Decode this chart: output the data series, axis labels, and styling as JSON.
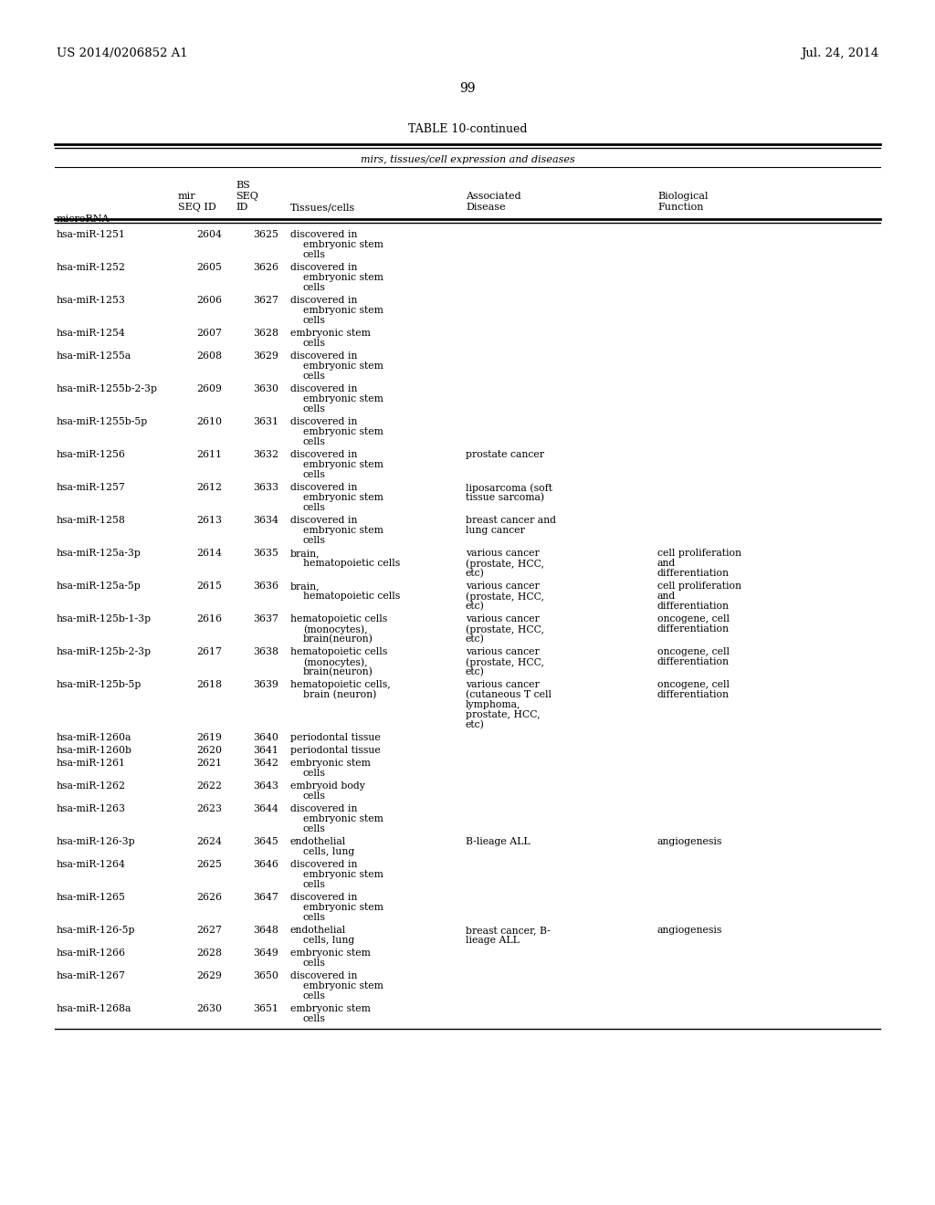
{
  "patent_left": "US 2014/0206852 A1",
  "patent_right": "Jul. 24, 2014",
  "page_number": "99",
  "table_title": "TABLE 10-continued",
  "table_subtitle": "mirs, tissues/cell expression and diseases",
  "rows": [
    {
      "mirna": "hsa-miR-1251",
      "mir_id": "2604",
      "bs_id": "3625",
      "tissues": [
        "discovered in",
        "embryonic stem",
        "cells"
      ],
      "disease": [],
      "bio_func": []
    },
    {
      "mirna": "hsa-miR-1252",
      "mir_id": "2605",
      "bs_id": "3626",
      "tissues": [
        "discovered in",
        "embryonic stem",
        "cells"
      ],
      "disease": [],
      "bio_func": []
    },
    {
      "mirna": "hsa-miR-1253",
      "mir_id": "2606",
      "bs_id": "3627",
      "tissues": [
        "discovered in",
        "embryonic stem",
        "cells"
      ],
      "disease": [],
      "bio_func": []
    },
    {
      "mirna": "hsa-miR-1254",
      "mir_id": "2607",
      "bs_id": "3628",
      "tissues": [
        "embryonic stem",
        "cells"
      ],
      "disease": [],
      "bio_func": []
    },
    {
      "mirna": "hsa-miR-1255a",
      "mir_id": "2608",
      "bs_id": "3629",
      "tissues": [
        "discovered in",
        "embryonic stem",
        "cells"
      ],
      "disease": [],
      "bio_func": []
    },
    {
      "mirna": "hsa-miR-1255b-2-3p",
      "mir_id": "2609",
      "bs_id": "3630",
      "tissues": [
        "discovered in",
        "embryonic stem",
        "cells"
      ],
      "disease": [],
      "bio_func": []
    },
    {
      "mirna": "hsa-miR-1255b-5p",
      "mir_id": "2610",
      "bs_id": "3631",
      "tissues": [
        "discovered in",
        "embryonic stem",
        "cells"
      ],
      "disease": [],
      "bio_func": []
    },
    {
      "mirna": "hsa-miR-1256",
      "mir_id": "2611",
      "bs_id": "3632",
      "tissues": [
        "discovered in",
        "embryonic stem",
        "cells"
      ],
      "disease": [
        "prostate cancer"
      ],
      "bio_func": []
    },
    {
      "mirna": "hsa-miR-1257",
      "mir_id": "2612",
      "bs_id": "3633",
      "tissues": [
        "discovered in",
        "embryonic stem",
        "cells"
      ],
      "disease": [
        "liposarcoma (soft",
        "tissue sarcoma)"
      ],
      "bio_func": []
    },
    {
      "mirna": "hsa-miR-1258",
      "mir_id": "2613",
      "bs_id": "3634",
      "tissues": [
        "discovered in",
        "embryonic stem",
        "cells"
      ],
      "disease": [
        "breast cancer and",
        "lung cancer"
      ],
      "bio_func": []
    },
    {
      "mirna": "hsa-miR-125a-3p",
      "mir_id": "2614",
      "bs_id": "3635",
      "tissues": [
        "brain,",
        "hematopoietic cells"
      ],
      "disease": [
        "various cancer",
        "(prostate, HCC,",
        "etc)"
      ],
      "bio_func": [
        "cell proliferation",
        "and",
        "differentiation"
      ]
    },
    {
      "mirna": "hsa-miR-125a-5p",
      "mir_id": "2615",
      "bs_id": "3636",
      "tissues": [
        "brain,",
        "hematopoietic cells"
      ],
      "disease": [
        "various cancer",
        "(prostate, HCC,",
        "etc)"
      ],
      "bio_func": [
        "cell proliferation",
        "and",
        "differentiation"
      ]
    },
    {
      "mirna": "hsa-miR-125b-1-3p",
      "mir_id": "2616",
      "bs_id": "3637",
      "tissues": [
        "hematopoietic cells",
        "(monocytes),",
        "brain(neuron)"
      ],
      "disease": [
        "various cancer",
        "(prostate, HCC,",
        "etc)"
      ],
      "bio_func": [
        "oncogene, cell",
        "differentiation"
      ]
    },
    {
      "mirna": "hsa-miR-125b-2-3p",
      "mir_id": "2617",
      "bs_id": "3638",
      "tissues": [
        "hematopoietic cells",
        "(monocytes),",
        "brain(neuron)"
      ],
      "disease": [
        "various cancer",
        "(prostate, HCC,",
        "etc)"
      ],
      "bio_func": [
        "oncogene, cell",
        "differentiation"
      ]
    },
    {
      "mirna": "hsa-miR-125b-5p",
      "mir_id": "2618",
      "bs_id": "3639",
      "tissues": [
        "hematopoietic cells,",
        "brain (neuron)"
      ],
      "disease": [
        "various cancer",
        "(cutaneous T cell",
        "lymphoma,",
        "prostate, HCC,",
        "etc)"
      ],
      "bio_func": [
        "oncogene, cell",
        "differentiation"
      ]
    },
    {
      "mirna": "hsa-miR-1260a",
      "mir_id": "2619",
      "bs_id": "3640",
      "tissues": [
        "periodontal tissue"
      ],
      "disease": [],
      "bio_func": []
    },
    {
      "mirna": "hsa-miR-1260b",
      "mir_id": "2620",
      "bs_id": "3641",
      "tissues": [
        "periodontal tissue"
      ],
      "disease": [],
      "bio_func": []
    },
    {
      "mirna": "hsa-miR-1261",
      "mir_id": "2621",
      "bs_id": "3642",
      "tissues": [
        "embryonic stem",
        "cells"
      ],
      "disease": [],
      "bio_func": []
    },
    {
      "mirna": "hsa-miR-1262",
      "mir_id": "2622",
      "bs_id": "3643",
      "tissues": [
        "embryoid body",
        "cells"
      ],
      "disease": [],
      "bio_func": []
    },
    {
      "mirna": "hsa-miR-1263",
      "mir_id": "2623",
      "bs_id": "3644",
      "tissues": [
        "discovered in",
        "embryonic stem",
        "cells"
      ],
      "disease": [],
      "bio_func": []
    },
    {
      "mirna": "hsa-miR-126-3p",
      "mir_id": "2624",
      "bs_id": "3645",
      "tissues": [
        "endothelial",
        "cells, lung"
      ],
      "disease": [
        "B-lieage ALL"
      ],
      "bio_func": [
        "angiogenesis"
      ]
    },
    {
      "mirna": "hsa-miR-1264",
      "mir_id": "2625",
      "bs_id": "3646",
      "tissues": [
        "discovered in",
        "embryonic stem",
        "cells"
      ],
      "disease": [],
      "bio_func": []
    },
    {
      "mirna": "hsa-miR-1265",
      "mir_id": "2626",
      "bs_id": "3647",
      "tissues": [
        "discovered in",
        "embryonic stem",
        "cells"
      ],
      "disease": [],
      "bio_func": []
    },
    {
      "mirna": "hsa-miR-126-5p",
      "mir_id": "2627",
      "bs_id": "3648",
      "tissues": [
        "endothelial",
        "cells, lung"
      ],
      "disease": [
        "breast cancer, B-",
        "lieage ALL"
      ],
      "bio_func": [
        "angiogenesis"
      ]
    },
    {
      "mirna": "hsa-miR-1266",
      "mir_id": "2628",
      "bs_id": "3649",
      "tissues": [
        "embryonic stem",
        "cells"
      ],
      "disease": [],
      "bio_func": []
    },
    {
      "mirna": "hsa-miR-1267",
      "mir_id": "2629",
      "bs_id": "3650",
      "tissues": [
        "discovered in",
        "embryonic stem",
        "cells"
      ],
      "disease": [],
      "bio_func": []
    },
    {
      "mirna": "hsa-miR-1268a",
      "mir_id": "2630",
      "bs_id": "3651",
      "tissues": [
        "embryonic stem",
        "cells"
      ],
      "disease": [],
      "bio_func": []
    }
  ],
  "bg_color": "#ffffff",
  "text_color": "#000000"
}
